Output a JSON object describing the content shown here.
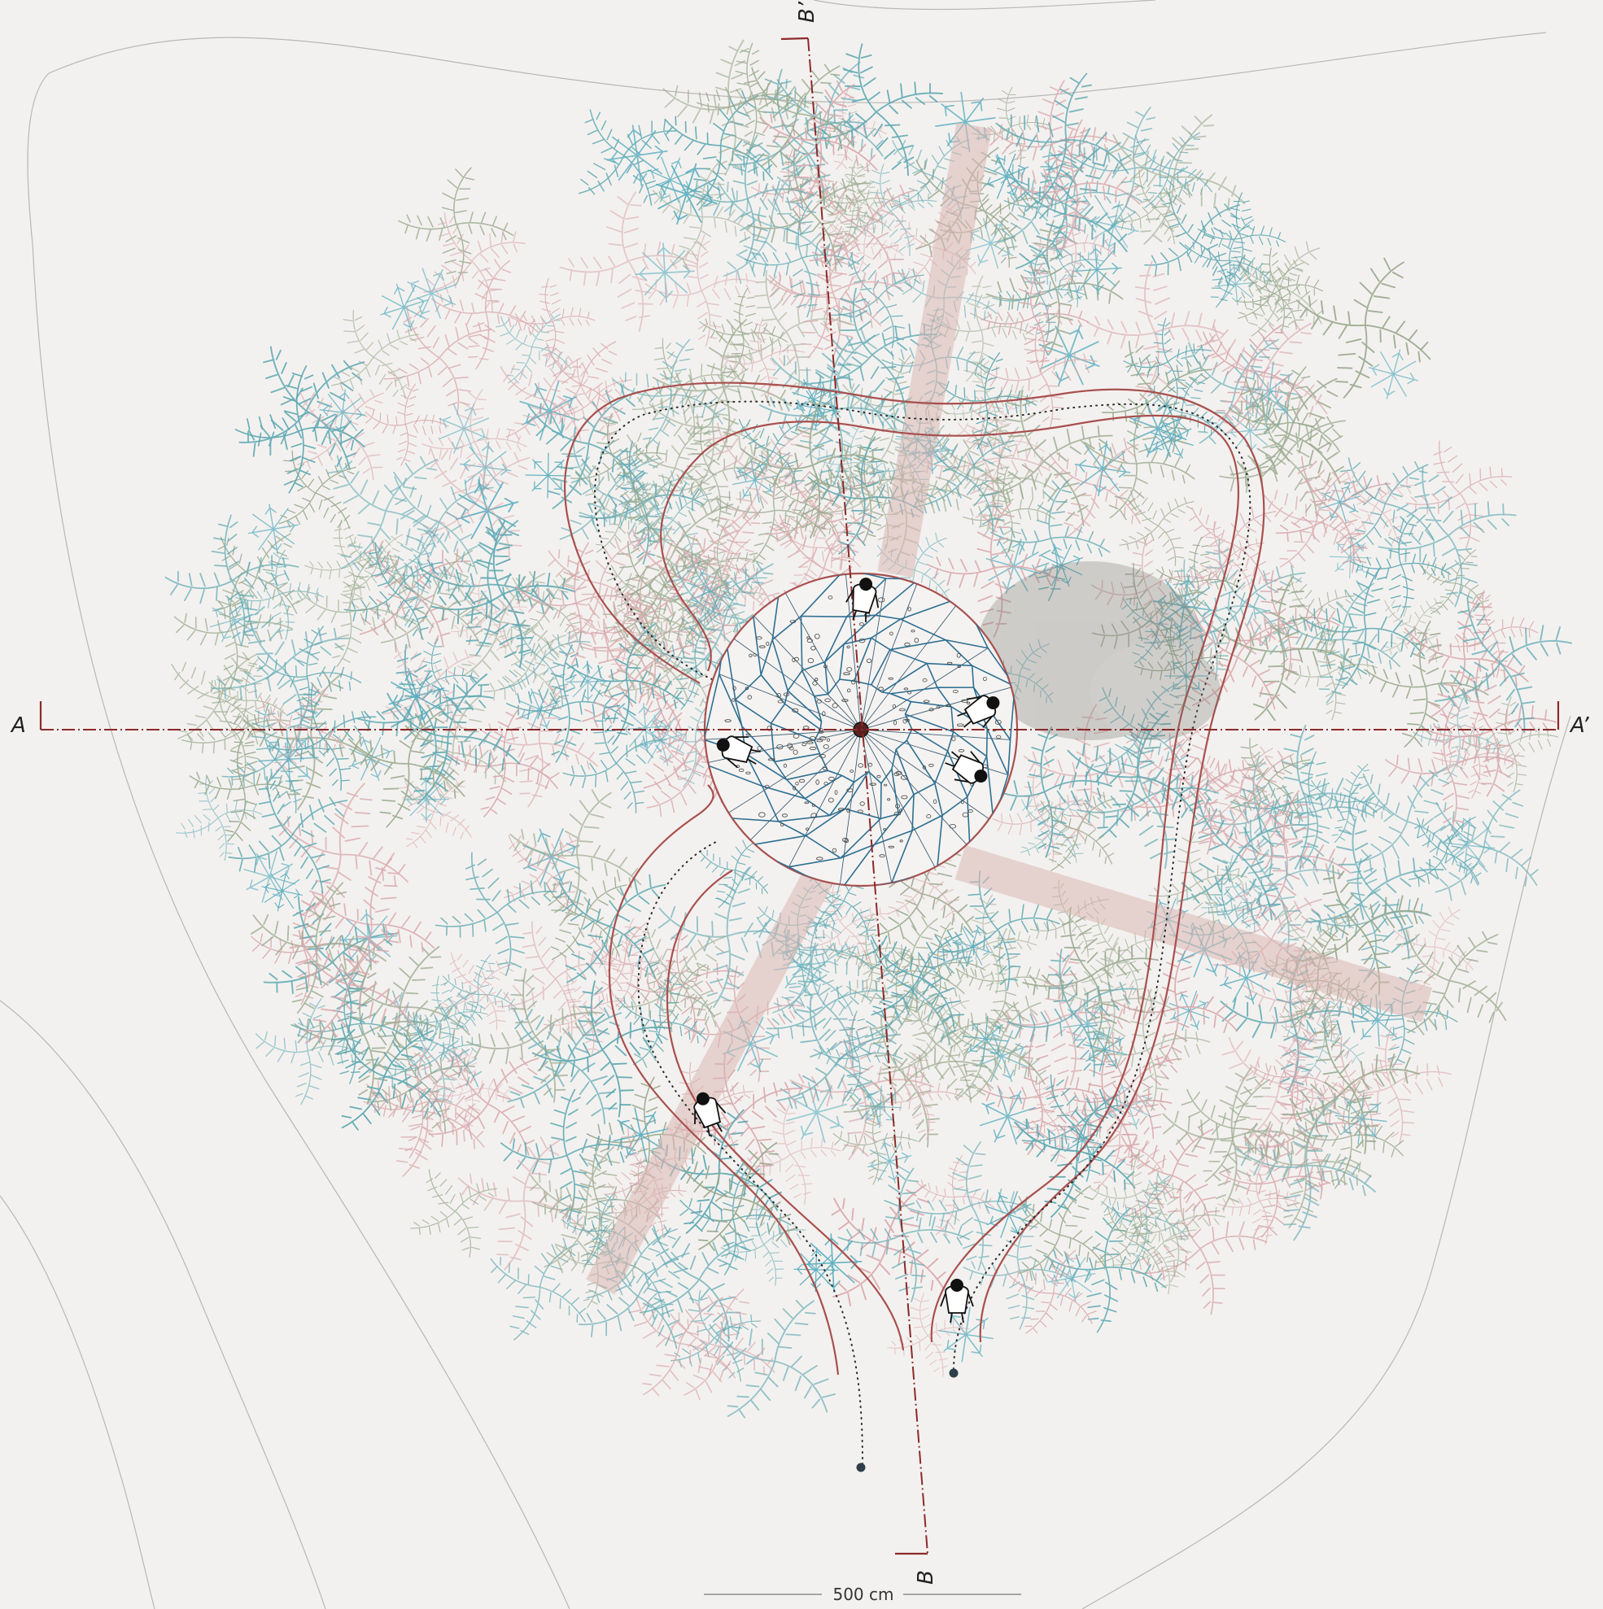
{
  "plan": {
    "section_a_start": "A",
    "section_a_end": "A’",
    "section_b_start": "B",
    "section_b_end": "B’",
    "scale_label": "500 cm"
  },
  "colors": {
    "background": "#f3f1ef",
    "fern_teal": "#5fa9b3",
    "fern_pink": "#d9a9ad",
    "fern_sage": "#9aaa8f",
    "fern_blue": "#5aaec0",
    "path_edge": "#a8504e",
    "section_line": "#8c2a2a",
    "web": "#2f6f92"
  },
  "icons": [
    "person-topview-icon",
    "fern-plant-icon",
    "end-point-dot-icon"
  ]
}
